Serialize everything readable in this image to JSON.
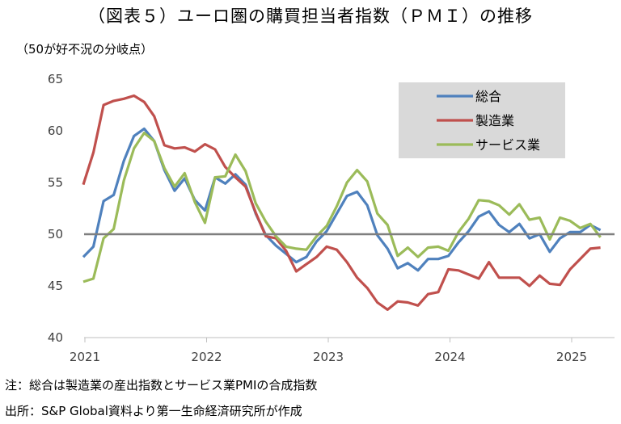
{
  "chart_data": {
    "type": "line",
    "title": "（図表５）ユーロ圏の購買担当者指数（ＰＭＩ）の推移",
    "ylabel": "（50が好不況の分岐点）",
    "ylim": [
      40,
      65
    ],
    "yticks": [
      "40",
      "45",
      "50",
      "55",
      "60",
      "65"
    ],
    "xticks": [
      {
        "label": "2021",
        "x": 2021
      },
      {
        "label": "2022",
        "x": 2022
      },
      {
        "label": "2023",
        "x": 2023
      },
      {
        "label": "2024",
        "x": 2024
      },
      {
        "label": "2025",
        "x": 2025
      }
    ],
    "x_start": "2021-01",
    "x_end": "2025-04",
    "reference_line": 50,
    "grid": false,
    "legend_position": "top-right",
    "series": [
      {
        "name": "総合",
        "color": "#4f81bd",
        "values": [
          47.8,
          48.8,
          53.2,
          53.8,
          57.1,
          59.5,
          60.2,
          59.0,
          56.2,
          54.2,
          55.4,
          53.3,
          52.3,
          55.5,
          54.9,
          55.8,
          54.8,
          52.0,
          49.9,
          48.9,
          48.1,
          47.3,
          47.8,
          49.3,
          50.3,
          52.0,
          53.7,
          54.1,
          52.8,
          49.9,
          48.6,
          46.7,
          47.2,
          46.5,
          47.6,
          47.6,
          47.9,
          49.2,
          50.3,
          51.7,
          52.2,
          50.9,
          50.2,
          51.0,
          49.6,
          50.0,
          48.3,
          49.6,
          50.2,
          50.2,
          50.9,
          50.4
        ]
      },
      {
        "name": "製造業",
        "color": "#c0504d",
        "values": [
          54.8,
          57.9,
          62.5,
          62.9,
          63.1,
          63.4,
          62.8,
          61.4,
          58.6,
          58.3,
          58.4,
          58.0,
          58.7,
          58.2,
          56.5,
          55.5,
          54.6,
          52.1,
          49.8,
          49.6,
          48.4,
          46.4,
          47.1,
          47.8,
          48.8,
          48.5,
          47.3,
          45.8,
          44.8,
          43.4,
          42.7,
          43.5,
          43.4,
          43.1,
          44.2,
          44.4,
          46.6,
          46.5,
          46.1,
          45.7,
          47.3,
          45.8,
          45.8,
          45.8,
          45.0,
          46.0,
          45.2,
          45.1,
          46.6,
          47.6,
          48.6,
          48.7
        ]
      },
      {
        "name": "サービス業",
        "color": "#9bbb59",
        "values": [
          45.4,
          45.7,
          49.6,
          50.5,
          55.2,
          58.3,
          59.8,
          59.0,
          56.4,
          54.6,
          55.9,
          53.1,
          51.1,
          55.5,
          55.6,
          57.7,
          56.1,
          53.0,
          51.2,
          49.8,
          48.8,
          48.6,
          48.5,
          49.8,
          50.8,
          52.7,
          55.0,
          56.2,
          55.1,
          52.0,
          50.9,
          47.9,
          48.7,
          47.8,
          48.7,
          48.8,
          48.4,
          50.2,
          51.5,
          53.3,
          53.2,
          52.8,
          51.9,
          52.9,
          51.4,
          51.6,
          49.5,
          51.6,
          51.3,
          50.6,
          51.0,
          49.7
        ]
      }
    ]
  },
  "notes": {
    "note": "注：総合は製造業の産出指数とサービス業PMIの合成指数",
    "source": "出所：S&P Global資料より第一生命経済研究所が作成"
  }
}
